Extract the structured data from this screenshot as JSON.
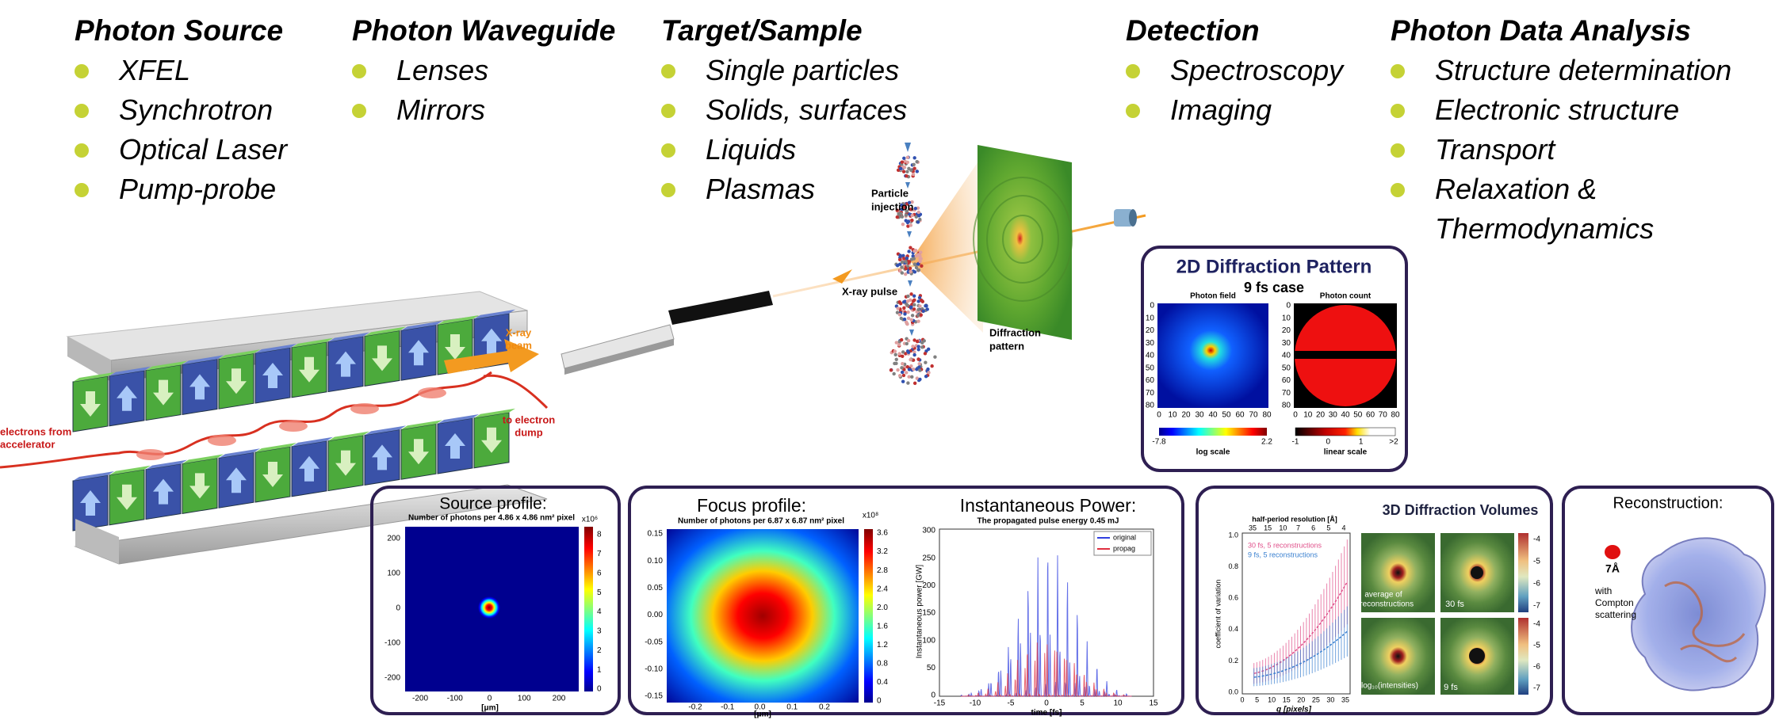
{
  "columns": [
    {
      "title": "Photon Source",
      "items": [
        "XFEL",
        "Synchrotron",
        "Optical Laser",
        "Pump-probe"
      ]
    },
    {
      "title": "Photon Waveguide",
      "items": [
        "Lenses",
        "Mirrors"
      ]
    },
    {
      "title": "Target/Sample",
      "items": [
        "Single particles",
        "Solids, surfaces",
        "Liquids",
        "Plasmas"
      ]
    },
    {
      "title": "Detection",
      "items": [
        "Spectroscopy",
        "Imaging"
      ]
    },
    {
      "title": "Photon Data Analysis",
      "items": [
        "Structure determination",
        "Electronic structure",
        "Transport",
        "Relaxation & Thermodynamics"
      ]
    }
  ],
  "schematic": {
    "xray_beam": [
      "X-ray",
      "beam"
    ],
    "electron_dump": [
      "to electron",
      "dump"
    ],
    "electrons": [
      "electrons from",
      "accelerator"
    ],
    "injection": [
      "Particle",
      "injection"
    ],
    "xray_pulse": "X-ray pulse",
    "pattern": [
      "Diffraction",
      "pattern"
    ]
  },
  "diffraction_2d": {
    "title": "2D Diffraction Pattern",
    "subtitle": "9 fs case",
    "field": {
      "label": "Photon field",
      "yticks": [
        0,
        10,
        20,
        30,
        40,
        50,
        60,
        70,
        80
      ],
      "xticks": [
        0,
        10,
        20,
        30,
        40,
        50,
        60,
        70,
        80
      ],
      "colorbar": [
        -7.8,
        2.2
      ],
      "scale": "log scale"
    },
    "count": {
      "label": "Photon count",
      "yticks": [
        0,
        10,
        20,
        30,
        40,
        50,
        60,
        70,
        80
      ],
      "xticks": [
        0,
        10,
        20,
        30,
        40,
        50,
        60,
        70,
        80
      ],
      "colorbar": [
        -1,
        0,
        1,
        ">2"
      ],
      "scale": "linear scale"
    }
  },
  "source_profile": {
    "title": "Source profile:",
    "subtitle": "Number of photons per 4.86 x 4.86 nm² pixel",
    "yticks": [
      200,
      100,
      0,
      -100,
      -200
    ],
    "xticks": [
      -200,
      -100,
      0,
      100,
      200
    ],
    "xlabel": "[μm]",
    "colorbar_unit": "x10⁶",
    "colorbar": [
      8,
      7,
      6,
      5,
      4,
      3,
      2,
      1,
      0
    ]
  },
  "focus_profile": {
    "title": "Focus profile:",
    "subtitle": "Number of photons per 6.87 x 6.87 nm² pixel",
    "yticks": [
      "0.15",
      "0.10",
      "0.05",
      "0.00",
      "-0.05",
      "-0.10",
      "-0.15"
    ],
    "xticks": [
      -0.2,
      -0.1,
      "0.0",
      0.1,
      0.2
    ],
    "xlabel": "[μm]",
    "colorbar_unit": "x10⁸",
    "colorbar": [
      3.6,
      3.2,
      2.8,
      2.4,
      "2.0",
      1.6,
      1.2,
      0.8,
      0.4,
      0
    ]
  },
  "power": {
    "title": "Instantaneous Power:",
    "subtitle": "The propagated pulse energy 0.45 mJ",
    "ylabel": "Instantaneous power [GW]",
    "yticks": [
      300,
      250,
      200,
      150,
      100,
      50,
      0
    ],
    "xticks": [
      -15,
      -10,
      -5,
      0,
      5,
      10,
      15
    ],
    "xlabel": "time [fs]",
    "legend": [
      "original",
      "propag"
    ]
  },
  "volumes_3d": {
    "title": "3D Diffraction Volumes",
    "top_label": "half-period resolution [Å]",
    "top_ticks": [
      35,
      15,
      10,
      7,
      6,
      5,
      4
    ],
    "legend": [
      "30 fs, 5 reconstructions",
      "9 fs, 5 reconstructions"
    ],
    "ylabel": "coefficient of variation",
    "yticks": [
      "1.0",
      0.8,
      0.6,
      0.4,
      0.2,
      "0.0"
    ],
    "xticks": [
      0,
      5,
      10,
      15,
      20,
      25,
      30,
      35
    ],
    "xlabel": "q [pixels]",
    "average": [
      "average of",
      "5 reconstructions"
    ],
    "t30": "30 fs",
    "log_label": "log₁₀(intensities)",
    "t9": "9 fs",
    "colorbar_top": [
      -4,
      -5,
      -6,
      -7
    ],
    "colorbar_bottom": [
      -4,
      -5,
      -6,
      -7
    ]
  },
  "reconstruction": {
    "title": "Reconstruction:",
    "resolution": "7Å",
    "note": [
      "with",
      "Compton",
      "scattering"
    ]
  }
}
